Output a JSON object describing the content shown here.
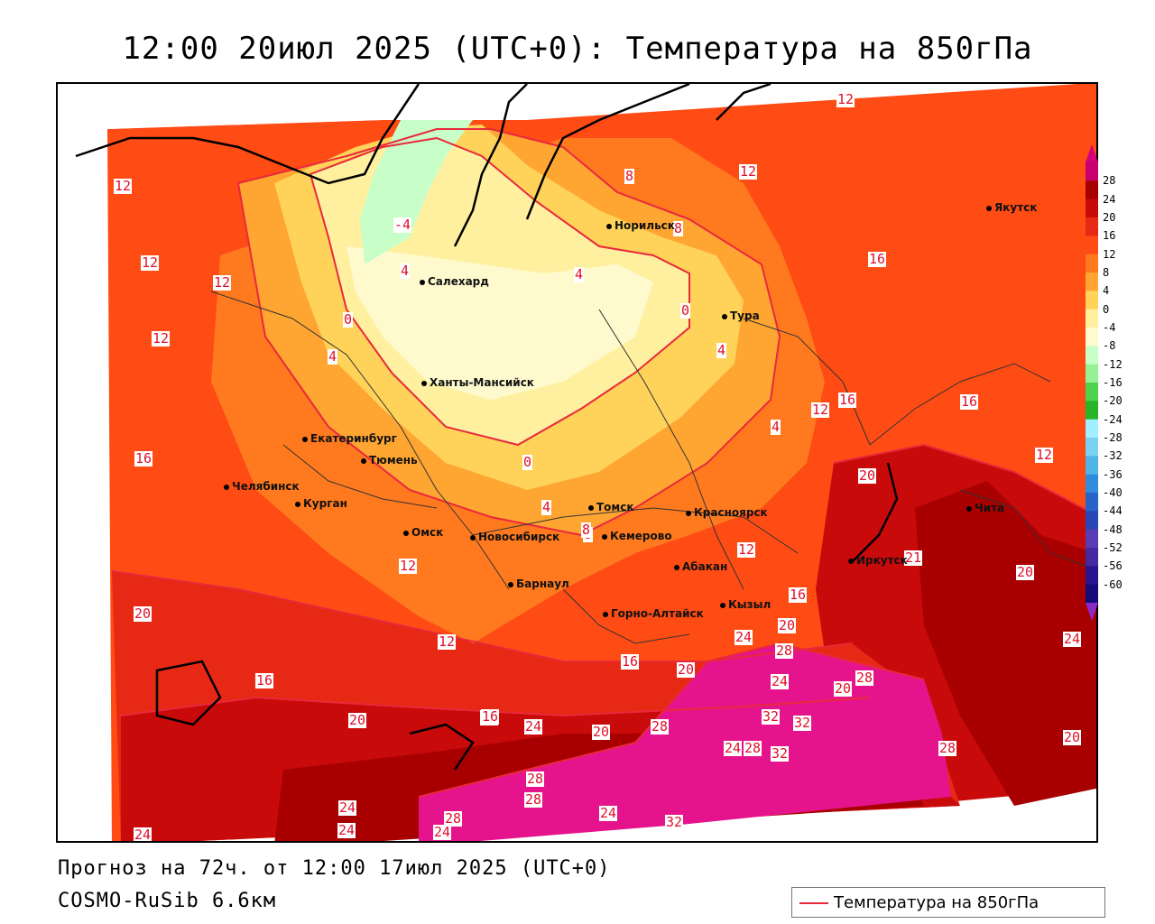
{
  "header": {
    "title": "12:00 20июл 2025 (UTC+0): Температура на 850гПа"
  },
  "footer": {
    "forecast": "Прогноз на 72ч. от 12:00 17июл 2025 (UTC+0)",
    "model": "COSMO-RuSib 6.6км"
  },
  "legend": {
    "label": "Температура на 850гПа",
    "color": "#e8293c"
  },
  "colorbar": {
    "ticks": [
      "28",
      "24",
      "20",
      "16",
      "12",
      "8",
      "4",
      "0",
      "-4",
      "-8",
      "-12",
      "-16",
      "-20",
      "-24",
      "-28",
      "-32",
      "-36",
      "-40",
      "-44",
      "-48",
      "-52",
      "-56",
      "-60"
    ],
    "colors": [
      "#c8006e",
      "#a80000",
      "#c80a0a",
      "#e62814",
      "#ff4b14",
      "#ff7a1e",
      "#ffa532",
      "#ffd25a",
      "#fff0a0",
      "#fffacd",
      "#c8ffc8",
      "#96f096",
      "#50d250",
      "#28b428",
      "#a0f0ff",
      "#78d2f0",
      "#50b4e6",
      "#328cdc",
      "#2864c8",
      "#2846b4",
      "#5a3cb4",
      "#4628a0",
      "#28148c",
      "#140a78"
    ],
    "arrow_top": "#d2007a",
    "arrow_bottom": "#8c28c8"
  },
  "cities": [
    {
      "name": "Норильск"
    },
    {
      "name": "Якутск"
    },
    {
      "name": "Салехард"
    },
    {
      "name": "Тура"
    },
    {
      "name": "Ханты-Мансийск"
    },
    {
      "name": "Екатеринбург"
    },
    {
      "name": "Тюмень"
    },
    {
      "name": "Челябинск"
    },
    {
      "name": "Курган"
    },
    {
      "name": "Омск"
    },
    {
      "name": "Новосибирск"
    },
    {
      "name": "Томск"
    },
    {
      "name": "Кемерово"
    },
    {
      "name": "Красноярск"
    },
    {
      "name": "Барнаул"
    },
    {
      "name": "Абакан"
    },
    {
      "name": "Горно-Алтайск"
    },
    {
      "name": "Кызыл"
    },
    {
      "name": "Иркутск"
    },
    {
      "name": "Чита"
    }
  ],
  "contour_labels": [
    "12",
    "12",
    "8",
    "12",
    "8",
    "-4",
    "4",
    "12",
    "12",
    "16",
    "0",
    "0",
    "4",
    "4",
    "12",
    "16",
    "16",
    "16",
    "0",
    "4",
    "20",
    "12",
    "12",
    "4",
    "8",
    "12",
    "20",
    "12",
    "16",
    "20",
    "16",
    "12",
    "20",
    "16",
    "16",
    "24",
    "20",
    "28",
    "24",
    "20",
    "28",
    "24",
    "20",
    "16",
    "24",
    "20",
    "28",
    "32",
    "32",
    "24",
    "28",
    "32",
    "28",
    "20",
    "24",
    "28",
    "28",
    "24",
    "32",
    "24",
    "24",
    "28",
    "24",
    "8",
    "4",
    "21"
  ],
  "colors": {
    "orange_red": "#ff4b14",
    "orange": "#ff7a1e",
    "light_orange": "#ffa532",
    "yellow": "#ffd25a",
    "pale_yellow": "#fff0a0",
    "cream": "#fffacd",
    "mint": "#c8ffc8",
    "red": "#e62814",
    "dark_red": "#c80a0a",
    "maroon": "#a80000",
    "magenta": "#e6148c",
    "contour": "#e8293c"
  }
}
